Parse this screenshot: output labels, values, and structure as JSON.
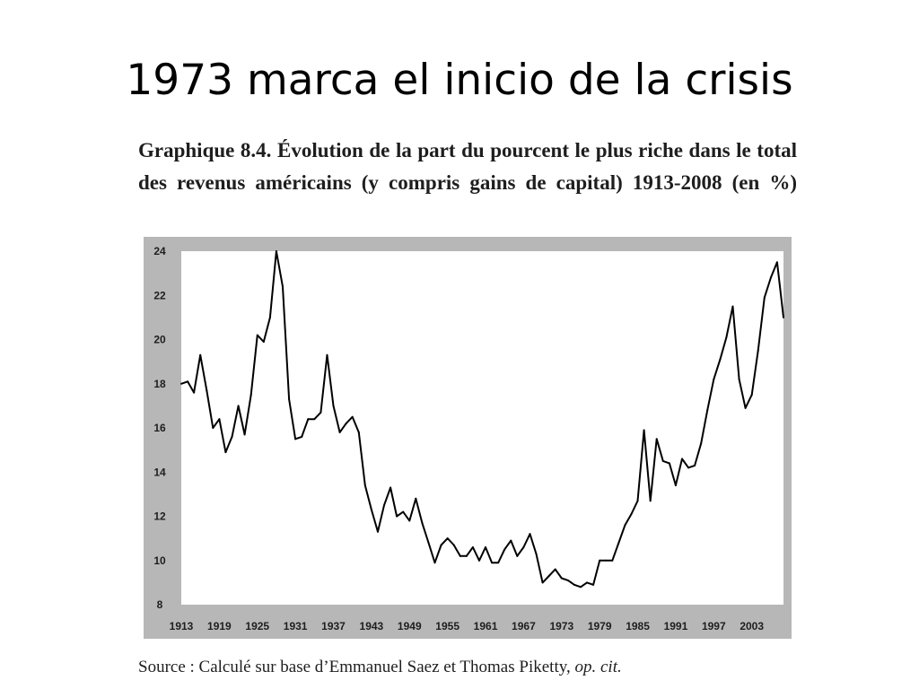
{
  "slide": {
    "title": "1973 marca el inicio de la crisis"
  },
  "figure": {
    "caption": "Graphique 8.4. Évolution de la part du pourcent le plus riche dans le total des revenus américains (y compris gains de capital) 1913-2008 (en %)",
    "source_prefix": "Source : Calculé sur base d’Emmanuel Saez et Thomas Piketty, ",
    "source_italic": "op. cit."
  },
  "colors": {
    "frame": "#b7b7b7",
    "plot_background": "#ffffff",
    "line": "#000000",
    "text": "#1e1e1e"
  },
  "chart_data": {
    "type": "line",
    "title": "",
    "xlabel": "",
    "ylabel": "",
    "grid": false,
    "legend": "none",
    "xlim": [
      1913,
      2008
    ],
    "ylim": [
      8,
      24
    ],
    "x_ticks": [
      1913,
      1919,
      1925,
      1931,
      1937,
      1943,
      1949,
      1955,
      1961,
      1967,
      1973,
      1979,
      1985,
      1991,
      1997,
      2003
    ],
    "y_ticks": [
      8,
      10,
      12,
      14,
      16,
      18,
      20,
      22,
      24
    ],
    "series": [
      {
        "x": [
          1913,
          1914,
          1915,
          1916,
          1917,
          1918,
          1919,
          1920,
          1921,
          1922,
          1923,
          1924,
          1925,
          1926,
          1927,
          1928,
          1929,
          1930,
          1931,
          1932,
          1933,
          1934,
          1935,
          1936,
          1937,
          1938,
          1939,
          1940,
          1941,
          1942,
          1943,
          1944,
          1945,
          1946,
          1947,
          1948,
          1949,
          1950,
          1951,
          1952,
          1953,
          1954,
          1955,
          1956,
          1957,
          1958,
          1959,
          1960,
          1961,
          1962,
          1963,
          1964,
          1965,
          1966,
          1967,
          1968,
          1969,
          1970,
          1971,
          1972,
          1973,
          1974,
          1975,
          1976,
          1977,
          1978,
          1979,
          1980,
          1981,
          1982,
          1983,
          1984,
          1985,
          1986,
          1987,
          1988,
          1989,
          1990,
          1991,
          1992,
          1993,
          1994,
          1995,
          1996,
          1997,
          1998,
          1999,
          2000,
          2001,
          2002,
          2003,
          2004,
          2005,
          2006,
          2007,
          2008
        ],
        "values": [
          18.0,
          18.1,
          17.6,
          19.3,
          17.7,
          16.0,
          16.4,
          14.9,
          15.6,
          17.0,
          15.7,
          17.5,
          20.2,
          19.9,
          21.0,
          24.0,
          22.4,
          17.3,
          15.5,
          15.6,
          16.4,
          16.4,
          16.7,
          19.3,
          17.0,
          15.8,
          16.2,
          16.5,
          15.8,
          13.4,
          12.3,
          11.3,
          12.5,
          13.3,
          12.0,
          12.2,
          11.8,
          12.8,
          11.7,
          10.8,
          9.9,
          10.7,
          11.0,
          10.7,
          10.2,
          10.2,
          10.6,
          10.0,
          10.6,
          9.9,
          9.9,
          10.5,
          10.9,
          10.2,
          10.6,
          11.2,
          10.3,
          9.0,
          9.3,
          9.6,
          9.2,
          9.1,
          8.9,
          8.8,
          9.0,
          8.9,
          10.0,
          10.0,
          10.0,
          10.8,
          11.6,
          12.1,
          12.7,
          15.9,
          12.7,
          15.5,
          14.5,
          14.4,
          13.4,
          14.6,
          14.2,
          14.3,
          15.3,
          16.8,
          18.2,
          19.1,
          20.1,
          21.5,
          18.2,
          16.9,
          17.5,
          19.5,
          21.9,
          22.8,
          23.5,
          21.0
        ]
      }
    ]
  }
}
